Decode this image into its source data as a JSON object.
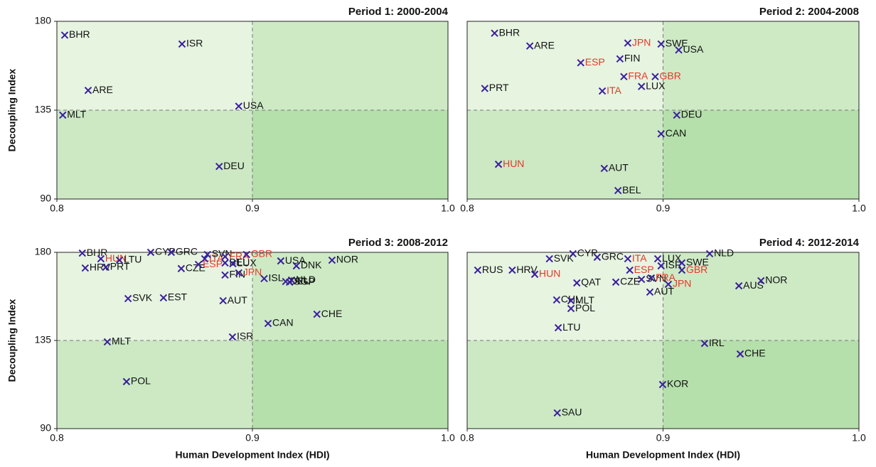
{
  "chart_data": [
    {
      "type": "scatter",
      "title": "Period 1: 2000-2004",
      "ylabel": "Decoupling Index",
      "xlim": [
        0.8,
        1.0
      ],
      "ylim": [
        90,
        180
      ],
      "xticks": [
        0.8,
        0.9,
        {
          "value": 1.0,
          "label": "1.0"
        }
      ],
      "yticks": [
        90,
        135,
        180
      ],
      "vline": 0.9,
      "hline": 135,
      "quadrant_colors": [
        "#e6f4e0",
        "#cdeac5",
        "#cce9c4",
        "#b5dfab"
      ],
      "marker_color": "#3a1f9c",
      "label_color": "#111111",
      "highlight_color": "#e8372b",
      "labels": [
        "BHR",
        "ISR",
        "ARE",
        "MLT",
        "USA",
        "DEU"
      ],
      "x": [
        0.804,
        0.864,
        0.816,
        0.803,
        0.893,
        0.883
      ],
      "values": [
        173,
        168.5,
        145,
        132.5,
        137,
        106.5
      ],
      "highlight": [
        false,
        false,
        false,
        false,
        false,
        false
      ]
    },
    {
      "type": "scatter",
      "title": "Period 2: 2004-2008",
      "xlim": [
        0.8,
        1.0
      ],
      "ylim": [
        90,
        180
      ],
      "xticks": [
        0.8,
        0.9,
        {
          "value": 1.0,
          "label": "1.0"
        }
      ],
      "vline": 0.9,
      "hline": 135,
      "quadrant_colors": [
        "#e6f4e0",
        "#cdeac5",
        "#cce9c4",
        "#b5dfab"
      ],
      "marker_color": "#3a1f9c",
      "label_color": "#111111",
      "highlight_color": "#e8372b",
      "labels": [
        "BHR",
        "ARE",
        "JPN",
        "SWE",
        "USA",
        "FIN",
        "ESP",
        "PRT",
        "FRA",
        "GBR",
        "ITA",
        "LUX",
        "DEU",
        "CAN",
        "HUN",
        "AUT",
        "BEL"
      ],
      "x": [
        0.814,
        0.832,
        0.882,
        0.899,
        0.908,
        0.878,
        0.858,
        0.809,
        0.88,
        0.896,
        0.869,
        0.889,
        0.907,
        0.899,
        0.816,
        0.87,
        0.877
      ],
      "values": [
        174,
        167.5,
        169,
        168.5,
        165.5,
        161,
        159,
        146,
        152,
        152,
        144.7,
        147,
        132.5,
        123,
        107.6,
        105.5,
        94.3
      ],
      "highlight": [
        false,
        false,
        true,
        false,
        false,
        false,
        true,
        false,
        true,
        true,
        true,
        false,
        false,
        false,
        true,
        false,
        false
      ]
    },
    {
      "type": "scatter",
      "title": "Period 3: 2008-2012",
      "ylabel": "Decoupling Index",
      "xlabel": "Human Development Index (HDI)",
      "xlim": [
        0.8,
        1.0
      ],
      "ylim": [
        90,
        180
      ],
      "xticks": [
        0.8,
        0.9,
        {
          "value": 1.0,
          "label": "1.0"
        }
      ],
      "yticks": [
        90,
        135,
        180
      ],
      "vline": 0.9,
      "hline": 135,
      "quadrant_colors": [
        "#e6f4e0",
        "#cdeac5",
        "#cce9c4",
        "#b5dfab"
      ],
      "marker_color": "#3a1f9c",
      "label_color": "#111111",
      "highlight_color": "#e8372b",
      "labels": [
        "BHR",
        "HUN",
        "LTU",
        "CYP",
        "GRC",
        "HRV",
        "PRT",
        "CZE",
        "ESP",
        "ITA",
        "SVN",
        "FRA",
        "GBR",
        "BEL",
        "LUX",
        "FIN",
        "JPN",
        "USA",
        "DNK",
        "NOR",
        "ISL",
        "NLD",
        "DEU",
        "SGP",
        "SVK",
        "EST",
        "AUT",
        "CAN",
        "CHE",
        "ISR",
        "MLT",
        "POL"
      ],
      "x": [
        0.813,
        0.8225,
        0.832,
        0.848,
        0.8585,
        0.8145,
        0.825,
        0.8636,
        0.8724,
        0.8756,
        0.877,
        0.886,
        0.897,
        0.886,
        0.89,
        0.886,
        0.893,
        0.9145,
        0.9225,
        0.9407,
        0.906,
        0.92,
        0.917,
        0.919,
        0.8364,
        0.8545,
        0.885,
        0.908,
        0.933,
        0.8898,
        0.8258,
        0.8356
      ],
      "values": [
        179.6,
        176.7,
        176,
        180,
        180,
        172,
        172.4,
        171.7,
        173.8,
        176.7,
        178.9,
        177.8,
        178.9,
        174.6,
        174.2,
        168.4,
        169.5,
        175.6,
        173.1,
        176,
        166.6,
        165.8,
        165.1,
        164.8,
        156.4,
        156.8,
        155.3,
        143.7,
        148.4,
        136.8,
        134.3,
        114
      ],
      "highlight": [
        false,
        true,
        false,
        false,
        false,
        false,
        false,
        false,
        true,
        true,
        false,
        true,
        true,
        false,
        false,
        false,
        true,
        false,
        false,
        false,
        false,
        false,
        false,
        false,
        false,
        false,
        false,
        false,
        false,
        false,
        false,
        false
      ]
    },
    {
      "type": "scatter",
      "title": "Period 4: 2012-2014",
      "xlabel": "Human Development Index (HDI)",
      "xlim": [
        0.8,
        1.0
      ],
      "ylim": [
        90,
        180
      ],
      "xticks": [
        0.8,
        0.9,
        {
          "value": 1.0,
          "label": "1.0"
        }
      ],
      "vline": 0.9,
      "hline": 135,
      "quadrant_colors": [
        "#e6f4e0",
        "#cdeac5",
        "#cce9c4",
        "#b5dfab"
      ],
      "marker_color": "#3a1f9c",
      "label_color": "#111111",
      "highlight_color": "#e8372b",
      "labels": [
        "RUS",
        "HRV",
        "HUN",
        "SVK",
        "CYP",
        "GRC",
        "QAT",
        "ITA",
        "ESP",
        "LUX",
        "ISR",
        "SWE",
        "NLD",
        "SVN",
        "CZE",
        "FRA",
        "GBR",
        "JPN",
        "AUT",
        "AUS",
        "NOR",
        "CHL",
        "MLT",
        "POL",
        "LTU",
        "IRL",
        "CHE",
        "KOR",
        "SAU"
      ],
      "x": [
        0.8054,
        0.823,
        0.8345,
        0.842,
        0.854,
        0.8664,
        0.856,
        0.882,
        0.883,
        0.8973,
        0.899,
        0.9096,
        0.9238,
        0.889,
        0.8759,
        0.894,
        0.9096,
        0.9027,
        0.8933,
        0.9387,
        0.95,
        0.8457,
        0.853,
        0.853,
        0.8465,
        0.9212,
        0.9394,
        0.8998,
        0.846
      ],
      "values": [
        170.9,
        170.9,
        168.8,
        176.7,
        179.3,
        177.5,
        164.4,
        176.7,
        170.9,
        176.7,
        173.1,
        174.6,
        179.3,
        166.2,
        164.8,
        166.9,
        170.9,
        163.7,
        159.7,
        162.9,
        165.5,
        155.7,
        155.3,
        151.3,
        141.5,
        133.5,
        128.1,
        112.5,
        98
      ],
      "highlight": [
        false,
        false,
        true,
        false,
        false,
        false,
        false,
        true,
        true,
        false,
        false,
        false,
        false,
        false,
        false,
        true,
        true,
        true,
        false,
        false,
        false,
        false,
        false,
        false,
        false,
        false,
        false,
        false,
        false
      ]
    }
  ]
}
